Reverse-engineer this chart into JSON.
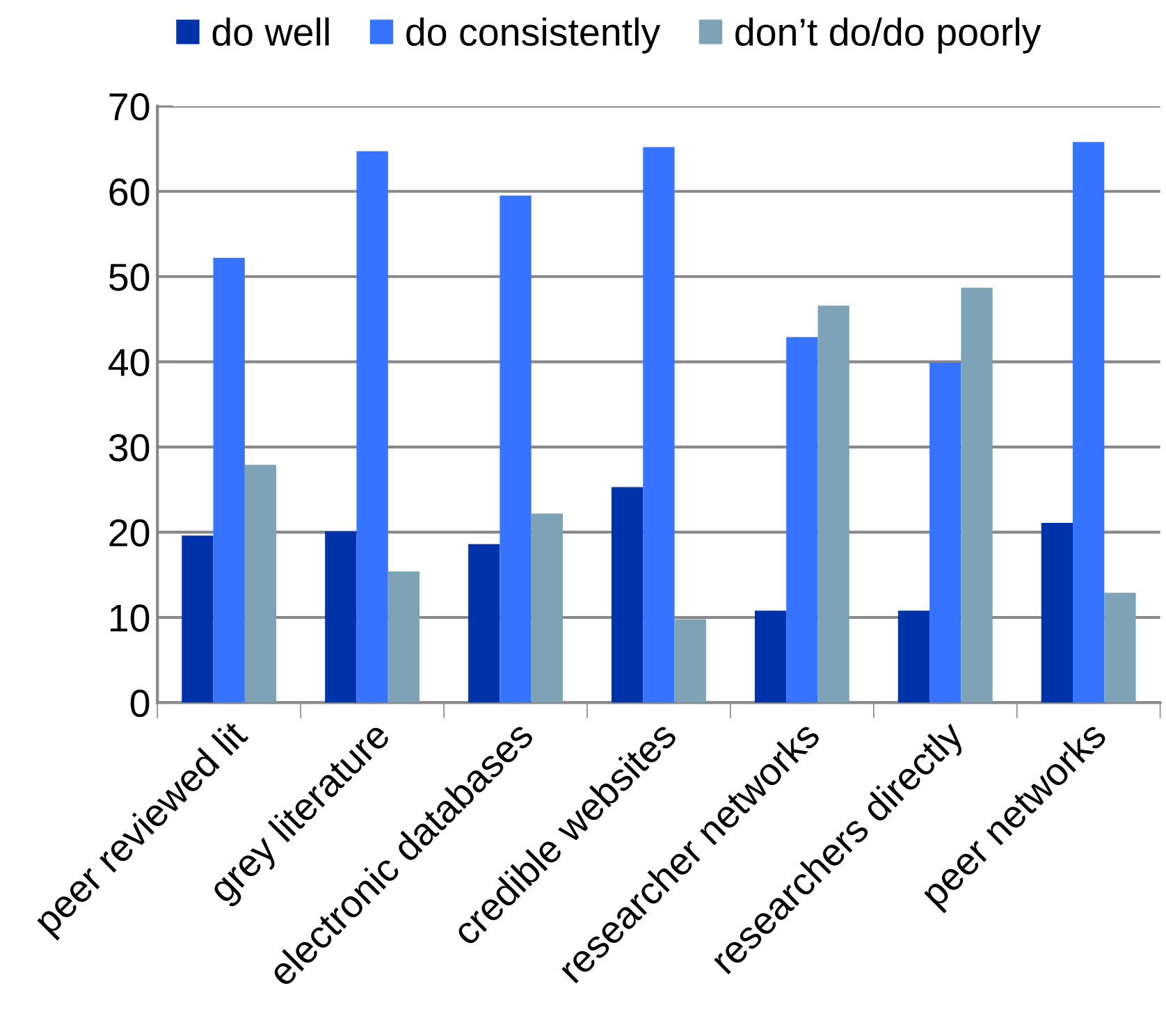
{
  "chart_data": {
    "type": "bar",
    "categories": [
      "peer reviewed lit",
      "grey literature",
      "electronic databases",
      "credible websites",
      "researcher networks",
      "researchers directly",
      "peer networks"
    ],
    "series": [
      {
        "name": "do well",
        "color": "#0033aa",
        "values": [
          19.6,
          20.1,
          18.6,
          25.3,
          10.8,
          10.8,
          21.1
        ]
      },
      {
        "name": "do consistently",
        "color": "#3673ff",
        "values": [
          52.2,
          64.7,
          59.5,
          65.2,
          42.9,
          39.9,
          65.8
        ]
      },
      {
        "name": "don’t do/do poorly",
        "color": "#7fa3b6",
        "values": [
          27.9,
          15.4,
          22.2,
          9.8,
          46.6,
          48.7,
          12.9
        ]
      }
    ],
    "ylim": [
      0,
      70
    ],
    "yticks": [
      0,
      10,
      20,
      30,
      40,
      50,
      60,
      70
    ],
    "grid": "y",
    "legend": "top"
  }
}
